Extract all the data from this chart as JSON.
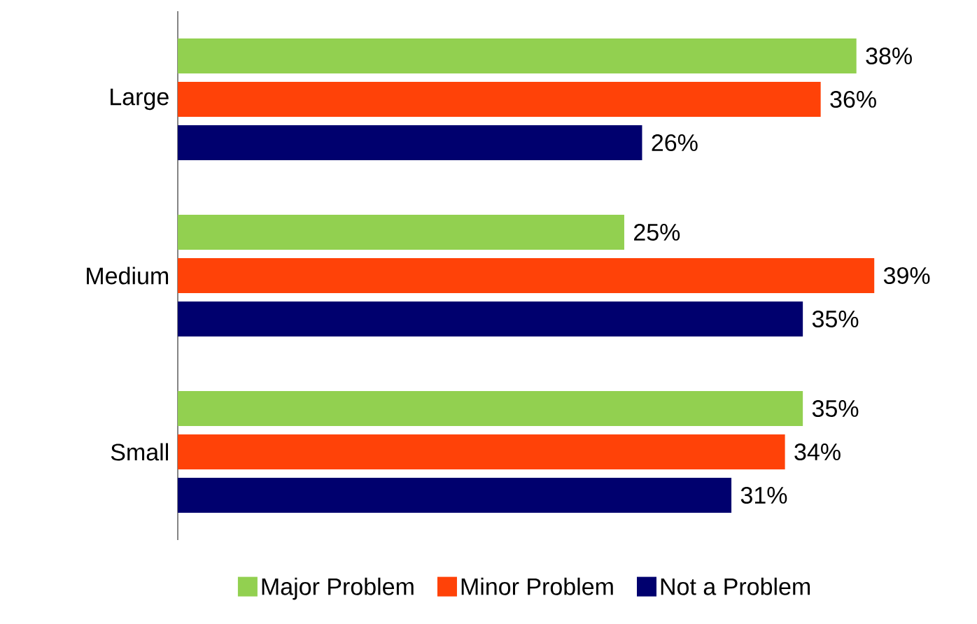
{
  "chart_data": {
    "type": "bar",
    "orientation": "horizontal",
    "categories": [
      "Large",
      "Medium",
      "Small"
    ],
    "legend": "bottom",
    "grid": false,
    "series": [
      {
        "name": "Major Problem",
        "color": "#92d050",
        "values": [
          38,
          25,
          35
        ],
        "value_labels": [
          "38%",
          "25%",
          "35%"
        ]
      },
      {
        "name": "Minor Problem",
        "color": "#ff4208",
        "values": [
          36,
          39,
          34
        ],
        "value_labels": [
          "36%",
          "39%",
          "34%"
        ]
      },
      {
        "name": "Not a Problem",
        "color": "#00006e",
        "values": [
          26,
          35,
          31
        ],
        "value_labels": [
          "26%",
          "35%",
          "31%"
        ]
      }
    ]
  }
}
